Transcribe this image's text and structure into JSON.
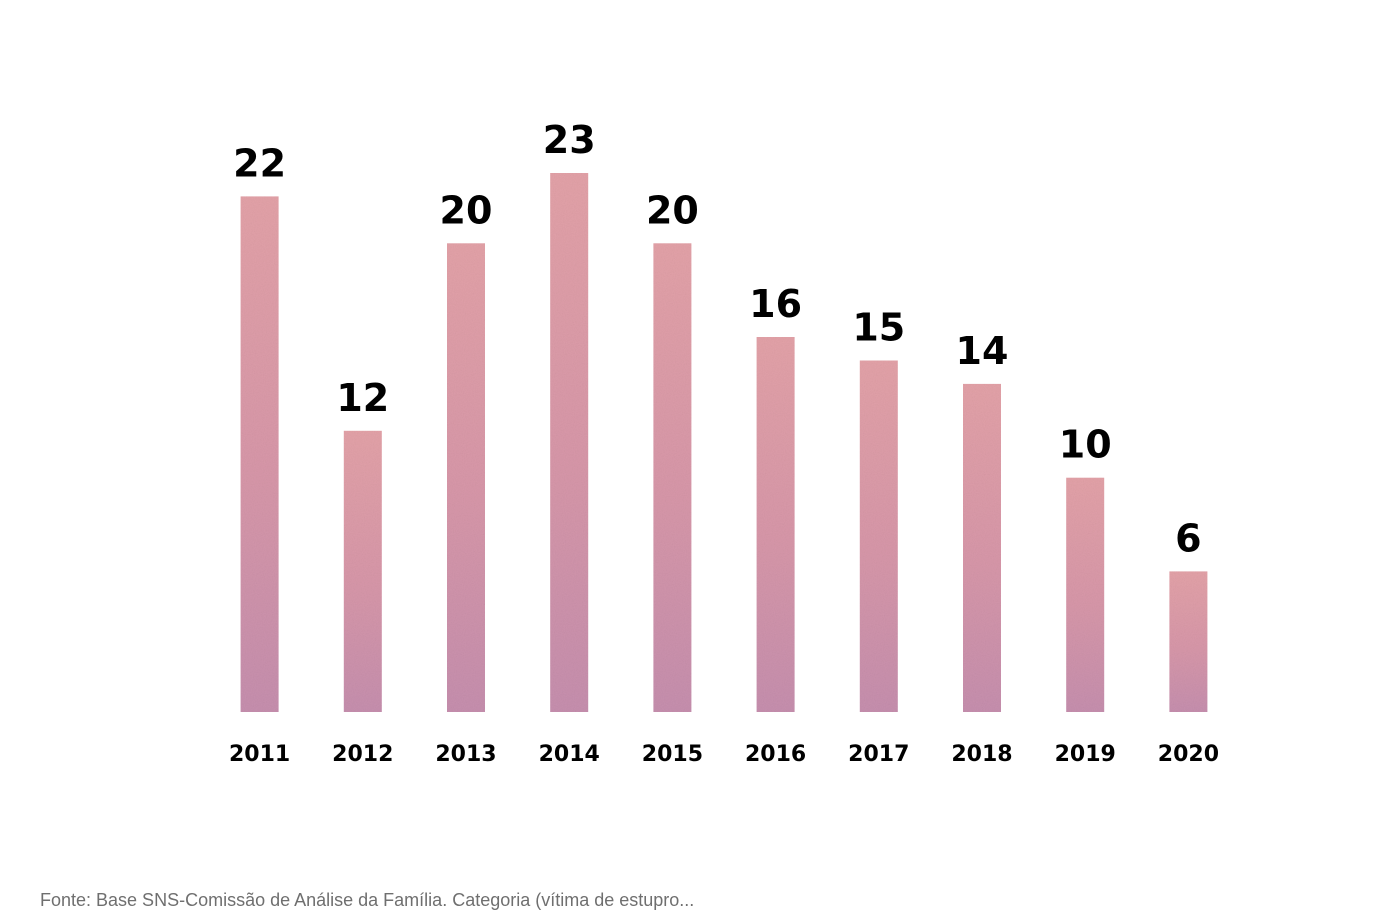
{
  "chart_data": {
    "type": "bar",
    "categories": [
      "2011",
      "2012",
      "2013",
      "2014",
      "2015",
      "2016",
      "2017",
      "2018",
      "2019",
      "2020"
    ],
    "values": [
      22,
      12,
      20,
      23,
      20,
      16,
      15,
      14,
      10,
      6
    ],
    "title": "",
    "xlabel": "",
    "ylabel": "",
    "ylim": [
      0,
      23
    ],
    "grid": false,
    "data_labels": true,
    "bar_color": "#dd9aa6",
    "bar_shade_color": "#8f6fa8"
  },
  "source_note": "Fonte: Base SNS-Comissão de Análise da Família. Categoria (vítima de estupro..."
}
